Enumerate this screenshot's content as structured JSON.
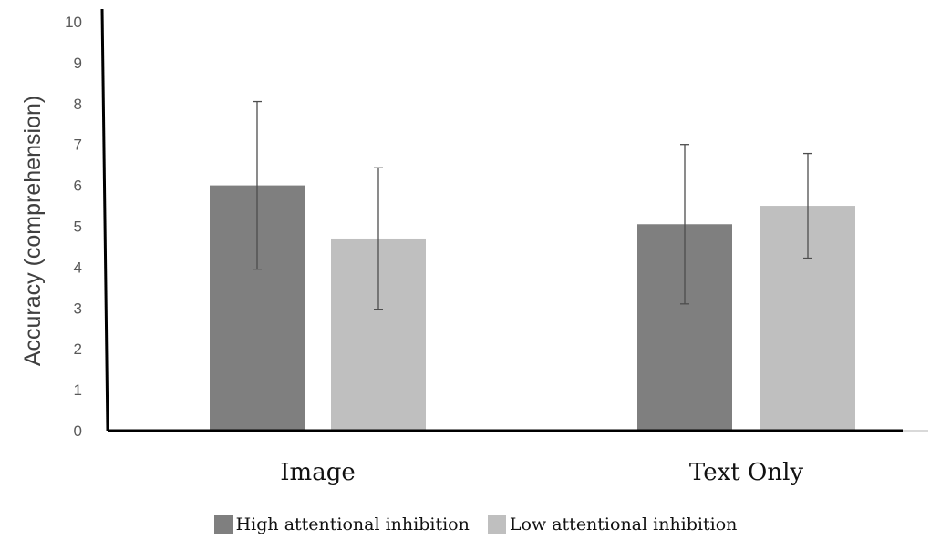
{
  "chart_data": {
    "type": "bar",
    "title": "",
    "xlabel": "",
    "ylabel": "Accuracy (comprehension)",
    "ylim": [
      0,
      10
    ],
    "yticks": [
      "0",
      "1",
      "2",
      "3",
      "4",
      "5",
      "6",
      "7",
      "8",
      "9",
      "10"
    ],
    "categories": [
      "Image",
      "Text Only"
    ],
    "series": [
      {
        "name": "High attentional inhibition",
        "color": "#7f7f7f",
        "values": [
          6.0,
          5.05
        ],
        "error": [
          2.05,
          1.95
        ]
      },
      {
        "name": "Low attentional inhibition",
        "color": "#bfbfbf",
        "values": [
          4.7,
          5.5
        ],
        "error": [
          1.73,
          1.28
        ]
      }
    ],
    "grid": false,
    "legend": "bottom"
  }
}
